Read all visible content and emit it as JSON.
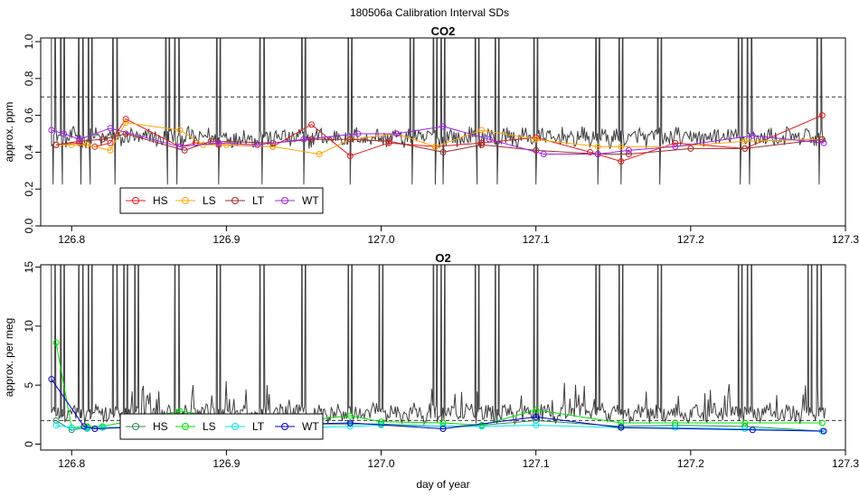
{
  "title": "180506a   Calibration Interval SDs",
  "xlabel": "day of year",
  "colors": {
    "trace": "#404040",
    "HS_co2": "#e41a1c",
    "LS_co2": "#ffa500",
    "LT_co2": "#a52a2a",
    "WT_co2": "#a020f0",
    "HS_o2": "#2e8b57",
    "LS_o2": "#00e000",
    "LT_o2": "#00e5ee",
    "WT_o2": "#0000cd"
  },
  "chart_data": [
    {
      "type": "line",
      "title": "CO2",
      "ylabel": "approx. ppm",
      "xlim": [
        126.78,
        127.3
      ],
      "ylim": [
        0.0,
        1.02
      ],
      "xticks": [
        "126.8",
        "126.9",
        "127.0",
        "127.1",
        "127.2",
        "127.3"
      ],
      "yticks": [
        "0.0",
        "0.2",
        "0.4",
        "0.6",
        "0.8",
        "1.0"
      ],
      "reference_line": 0.7,
      "legend": [
        "HS",
        "LS",
        "LT",
        "WT"
      ],
      "legend_position": "bottom-left",
      "trace": {
        "x_start": 126.787,
        "x_end": 127.287,
        "baseline": 0.48,
        "spike_x": [
          126.788,
          126.794,
          126.806,
          126.812,
          126.828,
          126.862,
          126.868,
          126.895,
          126.923,
          126.95,
          126.98,
          127.02,
          127.035,
          127.04,
          127.062,
          127.075,
          127.1,
          127.14,
          127.155,
          127.18,
          127.232,
          127.238,
          127.283
        ]
      },
      "series": [
        {
          "name": "HS",
          "x": [
            126.79,
            126.805,
            126.815,
            126.825,
            126.835,
            126.87,
            126.88,
            126.895,
            126.93,
            126.955,
            126.98,
            127.005,
            127.035,
            127.065,
            127.1,
            127.135,
            127.155,
            127.19,
            127.235,
            127.285
          ],
          "y": [
            0.44,
            0.45,
            0.43,
            0.45,
            0.58,
            0.43,
            0.45,
            0.44,
            0.43,
            0.55,
            0.38,
            0.45,
            0.43,
            0.45,
            0.48,
            0.4,
            0.35,
            0.45,
            0.42,
            0.6
          ]
        },
        {
          "name": "LS",
          "x": [
            126.79,
            126.8,
            126.81,
            126.825,
            126.835,
            126.87,
            126.885,
            126.9,
            126.93,
            126.96,
            126.98,
            127.01,
            127.035,
            127.065,
            127.1,
            127.14,
            127.155,
            127.19,
            127.235,
            127.285
          ],
          "y": [
            0.44,
            0.44,
            0.44,
            0.41,
            0.56,
            0.52,
            0.44,
            0.44,
            0.43,
            0.39,
            0.47,
            0.5,
            0.43,
            0.52,
            0.47,
            0.43,
            0.43,
            0.43,
            0.46,
            0.47
          ]
        },
        {
          "name": "LT",
          "x": [
            126.79,
            126.805,
            126.82,
            126.835,
            126.873,
            126.89,
            126.93,
            126.955,
            126.98,
            127.005,
            127.04,
            127.065,
            127.1,
            127.14,
            127.16,
            127.2,
            127.235,
            127.285
          ],
          "y": [
            0.44,
            0.46,
            0.47,
            0.5,
            0.41,
            0.46,
            0.45,
            0.47,
            0.47,
            0.46,
            0.4,
            0.44,
            0.41,
            0.39,
            0.39,
            0.42,
            0.42,
            0.47
          ]
        },
        {
          "name": "WT",
          "x": [
            126.787,
            126.795,
            126.805,
            126.825,
            126.87,
            126.895,
            126.92,
            126.95,
            126.985,
            127.01,
            127.04,
            127.07,
            127.105,
            127.14,
            127.16,
            127.19,
            127.24,
            127.286
          ],
          "y": [
            0.52,
            0.5,
            0.47,
            0.53,
            0.43,
            0.45,
            0.44,
            0.47,
            0.5,
            0.5,
            0.54,
            0.47,
            0.39,
            0.39,
            0.41,
            0.43,
            0.49,
            0.45
          ]
        }
      ]
    },
    {
      "type": "line",
      "title": "O2",
      "ylabel": "approx. per meg",
      "xlabel": "day of year",
      "xlim": [
        126.78,
        127.3
      ],
      "ylim": [
        -0.5,
        15.2
      ],
      "xticks": [
        "126.8",
        "126.9",
        "127.0",
        "127.1",
        "127.2",
        "127.3"
      ],
      "yticks": [
        "0",
        "5",
        "10",
        "15"
      ],
      "reference_line": 2.0,
      "legend": [
        "HS",
        "LS",
        "LT",
        "WT"
      ],
      "legend_position": "bottom-left",
      "trace": {
        "x_start": 126.787,
        "x_end": 127.287,
        "baseline": 2.6,
        "spike_x": [
          126.788,
          126.794,
          126.806,
          126.812,
          126.828,
          126.835,
          126.842,
          126.868,
          126.895,
          126.923,
          126.95,
          126.98,
          127.0,
          127.035,
          127.04,
          127.062,
          127.075,
          127.1,
          127.14,
          127.155,
          127.18,
          127.232,
          127.238,
          127.277,
          127.283
        ]
      },
      "series": [
        {
          "name": "HS",
          "x": [
            126.79,
            126.8,
            126.81,
            126.82,
            126.87,
            126.9,
            126.95,
            126.98,
            127.0,
            127.04,
            127.065,
            127.1,
            127.155,
            127.19,
            127.235,
            127.285
          ],
          "y": [
            2.0,
            1.2,
            1.4,
            1.4,
            1.5,
            1.6,
            1.7,
            1.7,
            1.7,
            1.5,
            1.6,
            2.0,
            1.5,
            1.6,
            1.5,
            1.1
          ]
        },
        {
          "name": "LS",
          "x": [
            126.79,
            126.8,
            126.81,
            126.82,
            126.87,
            126.9,
            126.95,
            126.98,
            127.0,
            127.04,
            127.065,
            127.1,
            127.155,
            127.19,
            127.235,
            127.285
          ],
          "y": [
            8.6,
            1.4,
            1.5,
            1.5,
            2.8,
            2.2,
            2.0,
            2.4,
            1.9,
            1.8,
            1.6,
            2.9,
            1.8,
            1.8,
            1.8,
            1.8
          ]
        },
        {
          "name": "LT",
          "x": [
            126.79,
            126.8,
            126.81,
            126.82,
            126.87,
            126.9,
            126.95,
            126.98,
            127.0,
            127.04,
            127.065,
            127.1,
            127.155,
            127.19,
            127.235,
            127.285
          ],
          "y": [
            1.6,
            1.4,
            1.3,
            1.4,
            1.4,
            1.4,
            1.4,
            1.5,
            1.6,
            1.5,
            1.5,
            1.6,
            1.4,
            1.4,
            1.3,
            1.1
          ]
        },
        {
          "name": "WT",
          "x": [
            126.787,
            126.808,
            126.815,
            126.87,
            126.9,
            126.95,
            126.98,
            127.04,
            127.1,
            127.155,
            127.24,
            127.286
          ],
          "y": [
            5.5,
            1.5,
            1.3,
            1.6,
            1.5,
            1.7,
            1.8,
            1.3,
            2.3,
            1.4,
            1.2,
            1.1
          ]
        }
      ]
    }
  ]
}
